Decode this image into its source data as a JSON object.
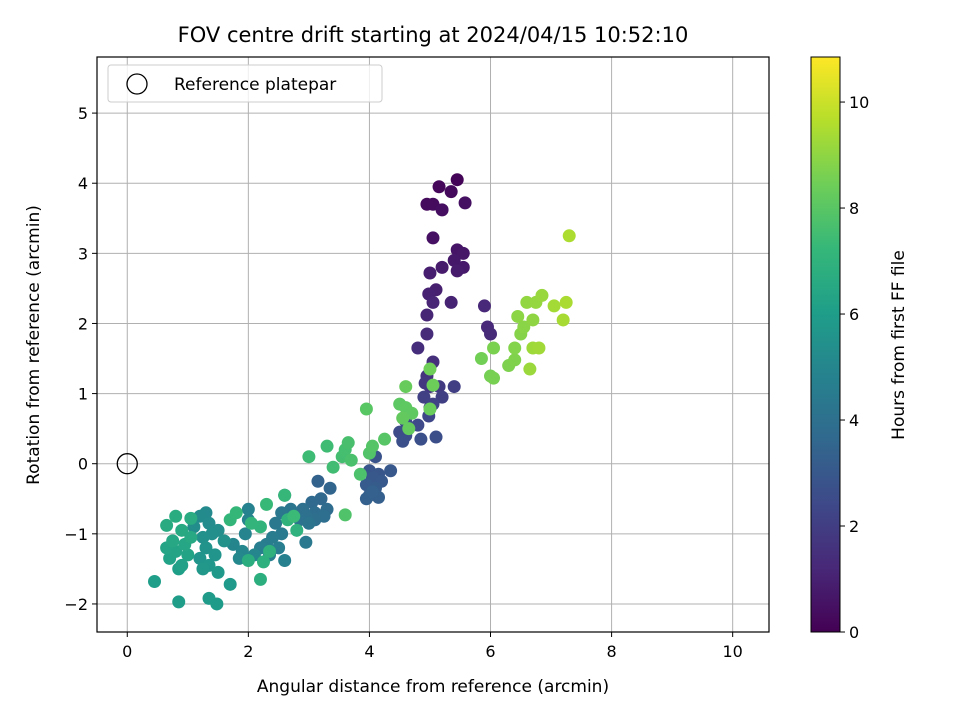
{
  "chart_data": {
    "type": "scatter",
    "title": "FOV centre drift starting at 2024/04/15 10:52:10",
    "xlabel": "Angular distance from reference (arcmin)",
    "ylabel": "Rotation from reference (arcmin)",
    "xlim": [
      -0.5,
      10.6
    ],
    "ylim": [
      -2.4,
      5.8
    ],
    "xticks": [
      0,
      2,
      4,
      6,
      8,
      10
    ],
    "yticks": [
      -2,
      -1,
      0,
      1,
      2,
      3,
      4,
      5
    ],
    "xtick_labels": [
      "0",
      "2",
      "4",
      "6",
      "8",
      "10"
    ],
    "ytick_labels": [
      "−2",
      "−1",
      "0",
      "1",
      "2",
      "3",
      "4",
      "5"
    ],
    "grid": true,
    "legend": {
      "placement": "top-left",
      "entries": [
        {
          "label": "Reference platepar",
          "marker": "open-circle"
        }
      ]
    },
    "reference_point": {
      "x": 0,
      "y": 0,
      "label": "Reference platepar"
    },
    "colorbar": {
      "label": "Hours from first FF file",
      "range": [
        0,
        10.85
      ],
      "ticks": [
        0,
        2,
        4,
        6,
        8,
        10
      ],
      "tick_labels": [
        "0",
        "2",
        "4",
        "6",
        "8",
        "10"
      ],
      "colormap": [
        "#440154",
        "#482878",
        "#3e4989",
        "#31688e",
        "#26828e",
        "#1f9e89",
        "#35b779",
        "#6ece58",
        "#b5de2b",
        "#fde725"
      ]
    },
    "points": [
      {
        "x": 5.45,
        "y": 4.05,
        "c": 0.1
      },
      {
        "x": 5.15,
        "y": 3.95,
        "c": 0.2
      },
      {
        "x": 5.35,
        "y": 3.88,
        "c": 0.25
      },
      {
        "x": 4.95,
        "y": 3.7,
        "c": 0.3
      },
      {
        "x": 5.05,
        "y": 3.7,
        "c": 0.35
      },
      {
        "x": 5.2,
        "y": 3.62,
        "c": 0.4
      },
      {
        "x": 5.58,
        "y": 3.72,
        "c": 0.45
      },
      {
        "x": 5.05,
        "y": 3.22,
        "c": 0.5
      },
      {
        "x": 5.45,
        "y": 3.05,
        "c": 0.6
      },
      {
        "x": 5.55,
        "y": 3.0,
        "c": 0.65
      },
      {
        "x": 5.4,
        "y": 2.9,
        "c": 0.7
      },
      {
        "x": 5.55,
        "y": 2.8,
        "c": 0.75
      },
      {
        "x": 5.2,
        "y": 2.8,
        "c": 0.8
      },
      {
        "x": 5.45,
        "y": 2.75,
        "c": 0.85
      },
      {
        "x": 5.0,
        "y": 2.72,
        "c": 0.9
      },
      {
        "x": 5.1,
        "y": 2.48,
        "c": 0.95
      },
      {
        "x": 4.98,
        "y": 2.42,
        "c": 1.0
      },
      {
        "x": 5.35,
        "y": 2.3,
        "c": 1.05
      },
      {
        "x": 5.05,
        "y": 2.3,
        "c": 1.1
      },
      {
        "x": 4.95,
        "y": 2.12,
        "c": 1.15
      },
      {
        "x": 5.9,
        "y": 2.25,
        "c": 1.2
      },
      {
        "x": 5.95,
        "y": 1.95,
        "c": 1.25
      },
      {
        "x": 6.0,
        "y": 1.85,
        "c": 1.3
      },
      {
        "x": 4.95,
        "y": 1.85,
        "c": 1.35
      },
      {
        "x": 4.8,
        "y": 1.65,
        "c": 1.4
      },
      {
        "x": 5.05,
        "y": 1.45,
        "c": 1.5
      },
      {
        "x": 4.95,
        "y": 1.25,
        "c": 1.6
      },
      {
        "x": 4.92,
        "y": 1.15,
        "c": 1.7
      },
      {
        "x": 5.0,
        "y": 1.1,
        "c": 1.8
      },
      {
        "x": 5.15,
        "y": 1.1,
        "c": 1.9
      },
      {
        "x": 5.4,
        "y": 1.1,
        "c": 2.0
      },
      {
        "x": 5.2,
        "y": 0.95,
        "c": 2.05
      },
      {
        "x": 4.9,
        "y": 0.95,
        "c": 2.1
      },
      {
        "x": 5.05,
        "y": 0.85,
        "c": 2.15
      },
      {
        "x": 5.0,
        "y": 0.8,
        "c": 2.2
      },
      {
        "x": 4.98,
        "y": 0.68,
        "c": 2.3
      },
      {
        "x": 4.6,
        "y": 0.6,
        "c": 2.4
      },
      {
        "x": 4.8,
        "y": 0.55,
        "c": 2.45
      },
      {
        "x": 4.5,
        "y": 0.45,
        "c": 2.5
      },
      {
        "x": 4.6,
        "y": 0.4,
        "c": 2.55
      },
      {
        "x": 5.1,
        "y": 0.38,
        "c": 2.6
      },
      {
        "x": 4.85,
        "y": 0.35,
        "c": 2.65
      },
      {
        "x": 4.55,
        "y": 0.32,
        "c": 2.7
      },
      {
        "x": 4.1,
        "y": 0.1,
        "c": 2.75
      },
      {
        "x": 4.0,
        "y": -0.1,
        "c": 2.85
      },
      {
        "x": 4.15,
        "y": -0.15,
        "c": 2.9
      },
      {
        "x": 4.35,
        "y": -0.1,
        "c": 2.95
      },
      {
        "x": 4.05,
        "y": -0.2,
        "c": 3.0
      },
      {
        "x": 4.2,
        "y": -0.25,
        "c": 3.05
      },
      {
        "x": 3.95,
        "y": -0.3,
        "c": 3.1
      },
      {
        "x": 4.1,
        "y": -0.35,
        "c": 3.15
      },
      {
        "x": 4.0,
        "y": -0.45,
        "c": 3.2
      },
      {
        "x": 4.15,
        "y": -0.48,
        "c": 3.25
      },
      {
        "x": 3.95,
        "y": -0.5,
        "c": 3.3
      },
      {
        "x": 4.05,
        "y": -0.4,
        "c": 3.35
      },
      {
        "x": 3.15,
        "y": -0.25,
        "c": 3.4
      },
      {
        "x": 3.35,
        "y": -0.35,
        "c": 3.5
      },
      {
        "x": 3.2,
        "y": -0.5,
        "c": 3.6
      },
      {
        "x": 3.05,
        "y": -0.55,
        "c": 3.7
      },
      {
        "x": 3.3,
        "y": -0.65,
        "c": 3.8
      },
      {
        "x": 3.1,
        "y": -0.7,
        "c": 3.85
      },
      {
        "x": 3.25,
        "y": -0.75,
        "c": 3.9
      },
      {
        "x": 3.1,
        "y": -0.8,
        "c": 3.95
      },
      {
        "x": 2.9,
        "y": -0.65,
        "c": 4.0
      },
      {
        "x": 2.95,
        "y": -0.75,
        "c": 4.05
      },
      {
        "x": 2.85,
        "y": -0.8,
        "c": 4.1
      },
      {
        "x": 3.0,
        "y": -0.85,
        "c": 4.15
      },
      {
        "x": 2.6,
        "y": -0.45,
        "c": 4.2
      },
      {
        "x": 2.7,
        "y": -0.65,
        "c": 4.25
      },
      {
        "x": 2.55,
        "y": -0.7,
        "c": 4.3
      },
      {
        "x": 2.45,
        "y": -0.85,
        "c": 4.35
      },
      {
        "x": 2.95,
        "y": -1.12,
        "c": 4.4
      },
      {
        "x": 2.55,
        "y": -1.0,
        "c": 4.45
      },
      {
        "x": 2.4,
        "y": -1.05,
        "c": 4.5
      },
      {
        "x": 2.3,
        "y": -1.15,
        "c": 4.55
      },
      {
        "x": 2.2,
        "y": -1.2,
        "c": 4.6
      },
      {
        "x": 2.5,
        "y": -1.2,
        "c": 4.65
      },
      {
        "x": 2.35,
        "y": -1.3,
        "c": 4.7
      },
      {
        "x": 2.6,
        "y": -1.38,
        "c": 4.75
      },
      {
        "x": 2.0,
        "y": -0.65,
        "c": 4.8
      },
      {
        "x": 2.0,
        "y": -0.8,
        "c": 4.85
      },
      {
        "x": 1.95,
        "y": -1.0,
        "c": 4.9
      },
      {
        "x": 1.75,
        "y": -1.15,
        "c": 4.95
      },
      {
        "x": 1.9,
        "y": -1.25,
        "c": 5.0
      },
      {
        "x": 2.1,
        "y": -1.3,
        "c": 5.05
      },
      {
        "x": 1.85,
        "y": -1.35,
        "c": 5.1
      },
      {
        "x": 1.3,
        "y": -0.7,
        "c": 5.15
      },
      {
        "x": 1.2,
        "y": -0.75,
        "c": 5.2
      },
      {
        "x": 1.35,
        "y": -0.85,
        "c": 5.25
      },
      {
        "x": 1.1,
        "y": -0.9,
        "c": 5.3
      },
      {
        "x": 1.5,
        "y": -0.95,
        "c": 5.35
      },
      {
        "x": 1.4,
        "y": -1.0,
        "c": 5.4
      },
      {
        "x": 1.25,
        "y": -1.05,
        "c": 5.45
      },
      {
        "x": 1.6,
        "y": -1.1,
        "c": 5.5
      },
      {
        "x": 1.3,
        "y": -1.2,
        "c": 5.55
      },
      {
        "x": 1.45,
        "y": -1.3,
        "c": 5.6
      },
      {
        "x": 1.2,
        "y": -1.35,
        "c": 5.65
      },
      {
        "x": 1.35,
        "y": -1.45,
        "c": 5.7
      },
      {
        "x": 1.25,
        "y": -1.5,
        "c": 5.75
      },
      {
        "x": 1.5,
        "y": -1.55,
        "c": 5.8
      },
      {
        "x": 1.7,
        "y": -1.72,
        "c": 5.85
      },
      {
        "x": 1.35,
        "y": -1.92,
        "c": 5.9
      },
      {
        "x": 1.48,
        "y": -2.0,
        "c": 5.95
      },
      {
        "x": 0.85,
        "y": -1.97,
        "c": 6.0
      },
      {
        "x": 0.45,
        "y": -1.68,
        "c": 6.05
      },
      {
        "x": 0.85,
        "y": -1.5,
        "c": 6.1
      },
      {
        "x": 0.9,
        "y": -1.45,
        "c": 6.15
      },
      {
        "x": 0.7,
        "y": -1.35,
        "c": 6.2
      },
      {
        "x": 1.0,
        "y": -1.3,
        "c": 6.25
      },
      {
        "x": 0.8,
        "y": -1.25,
        "c": 6.3
      },
      {
        "x": 0.65,
        "y": -1.2,
        "c": 6.35
      },
      {
        "x": 0.95,
        "y": -1.15,
        "c": 6.4
      },
      {
        "x": 0.75,
        "y": -1.1,
        "c": 6.45
      },
      {
        "x": 1.05,
        "y": -1.05,
        "c": 6.5
      },
      {
        "x": 0.9,
        "y": -0.95,
        "c": 6.55
      },
      {
        "x": 0.65,
        "y": -0.88,
        "c": 6.6
      },
      {
        "x": 1.05,
        "y": -0.78,
        "c": 6.65
      },
      {
        "x": 0.8,
        "y": -0.75,
        "c": 6.7
      },
      {
        "x": 2.0,
        "y": -1.38,
        "c": 6.75
      },
      {
        "x": 2.2,
        "y": -1.65,
        "c": 6.8
      },
      {
        "x": 2.25,
        "y": -1.4,
        "c": 6.85
      },
      {
        "x": 2.35,
        "y": -1.25,
        "c": 6.9
      },
      {
        "x": 2.8,
        "y": -0.95,
        "c": 6.95
      },
      {
        "x": 2.65,
        "y": -0.8,
        "c": 7.0
      },
      {
        "x": 2.2,
        "y": -0.9,
        "c": 7.05
      },
      {
        "x": 2.05,
        "y": -0.85,
        "c": 7.1
      },
      {
        "x": 1.7,
        "y": -0.8,
        "c": 7.15
      },
      {
        "x": 1.8,
        "y": -0.7,
        "c": 7.2
      },
      {
        "x": 2.6,
        "y": -0.45,
        "c": 7.25
      },
      {
        "x": 2.3,
        "y": -0.58,
        "c": 7.3
      },
      {
        "x": 2.75,
        "y": -0.75,
        "c": 7.35
      },
      {
        "x": 3.0,
        "y": 0.1,
        "c": 7.4
      },
      {
        "x": 3.3,
        "y": 0.25,
        "c": 7.45
      },
      {
        "x": 3.4,
        "y": -0.05,
        "c": 7.5
      },
      {
        "x": 3.55,
        "y": 0.1,
        "c": 7.55
      },
      {
        "x": 3.6,
        "y": 0.2,
        "c": 7.6
      },
      {
        "x": 3.65,
        "y": 0.3,
        "c": 7.65
      },
      {
        "x": 3.7,
        "y": 0.05,
        "c": 7.7
      },
      {
        "x": 3.85,
        "y": -0.15,
        "c": 7.75
      },
      {
        "x": 3.6,
        "y": -0.73,
        "c": 7.8
      },
      {
        "x": 4.0,
        "y": 0.15,
        "c": 7.85
      },
      {
        "x": 4.05,
        "y": 0.25,
        "c": 7.9
      },
      {
        "x": 4.25,
        "y": 0.35,
        "c": 7.95
      },
      {
        "x": 3.95,
        "y": 0.78,
        "c": 8.0
      },
      {
        "x": 4.5,
        "y": 0.85,
        "c": 8.05
      },
      {
        "x": 4.6,
        "y": 0.8,
        "c": 8.1
      },
      {
        "x": 4.7,
        "y": 0.72,
        "c": 8.15
      },
      {
        "x": 4.55,
        "y": 0.65,
        "c": 8.2
      },
      {
        "x": 4.65,
        "y": 0.5,
        "c": 8.25
      },
      {
        "x": 4.6,
        "y": 1.1,
        "c": 8.3
      },
      {
        "x": 5.0,
        "y": 0.78,
        "c": 8.35
      },
      {
        "x": 5.05,
        "y": 1.12,
        "c": 8.4
      },
      {
        "x": 5.0,
        "y": 1.35,
        "c": 8.45
      },
      {
        "x": 5.85,
        "y": 1.5,
        "c": 8.5
      },
      {
        "x": 6.0,
        "y": 1.25,
        "c": 8.55
      },
      {
        "x": 6.05,
        "y": 1.22,
        "c": 8.6
      },
      {
        "x": 6.05,
        "y": 1.65,
        "c": 8.65
      },
      {
        "x": 6.3,
        "y": 1.4,
        "c": 8.7
      },
      {
        "x": 6.4,
        "y": 1.48,
        "c": 8.75
      },
      {
        "x": 6.4,
        "y": 1.65,
        "c": 8.8
      },
      {
        "x": 6.5,
        "y": 1.85,
        "c": 8.85
      },
      {
        "x": 6.55,
        "y": 1.95,
        "c": 8.9
      },
      {
        "x": 6.45,
        "y": 2.1,
        "c": 8.95
      },
      {
        "x": 6.7,
        "y": 2.05,
        "c": 9.0
      },
      {
        "x": 6.6,
        "y": 2.3,
        "c": 9.05
      },
      {
        "x": 6.75,
        "y": 2.3,
        "c": 9.1
      },
      {
        "x": 6.85,
        "y": 2.4,
        "c": 9.15
      },
      {
        "x": 6.65,
        "y": 1.35,
        "c": 9.2
      },
      {
        "x": 6.7,
        "y": 1.65,
        "c": 9.25
      },
      {
        "x": 6.8,
        "y": 1.65,
        "c": 9.3
      },
      {
        "x": 7.05,
        "y": 2.25,
        "c": 9.35
      },
      {
        "x": 7.2,
        "y": 2.05,
        "c": 9.4
      },
      {
        "x": 7.25,
        "y": 2.3,
        "c": 9.45
      },
      {
        "x": 7.3,
        "y": 3.25,
        "c": 9.5
      }
    ]
  }
}
